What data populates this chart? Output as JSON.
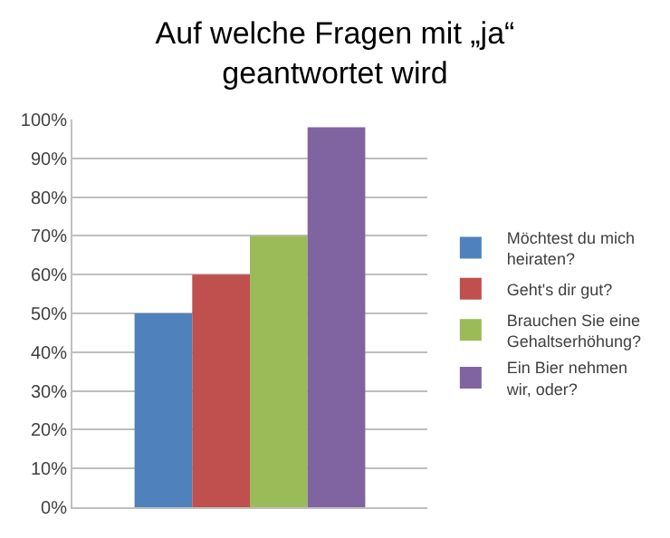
{
  "chart_data": {
    "type": "bar",
    "title": "Auf welche Fragen mit „ja“ geantwortet wird",
    "categories": [
      null
    ],
    "series": [
      {
        "name": "Möchtest du mich heiraten?",
        "color": "#4f81bd",
        "values": [
          50
        ]
      },
      {
        "name": "Geht's dir gut?",
        "color": "#c0504d",
        "values": [
          60
        ]
      },
      {
        "name": "Brauchen Sie eine Gehaltserhöhung?",
        "color": "#9bbb59",
        "values": [
          70
        ]
      },
      {
        "name": "Ein Bier nehmen wir, oder?",
        "color": "#8064a2",
        "values": [
          98
        ]
      }
    ],
    "ylim": [
      0,
      100
    ],
    "yticks": [
      {
        "value": 0,
        "label": "0%"
      },
      {
        "value": 10,
        "label": "10%"
      },
      {
        "value": 20,
        "label": "20%"
      },
      {
        "value": 30,
        "label": "30%"
      },
      {
        "value": 40,
        "label": "40%"
      },
      {
        "value": 50,
        "label": "50%"
      },
      {
        "value": 60,
        "label": "60%"
      },
      {
        "value": 70,
        "label": "70%"
      },
      {
        "value": 80,
        "label": "80%"
      },
      {
        "value": 90,
        "label": "90%"
      },
      {
        "value": 100,
        "label": "100%"
      }
    ],
    "grid": "y",
    "legend": "right",
    "tick_labels": "y"
  }
}
